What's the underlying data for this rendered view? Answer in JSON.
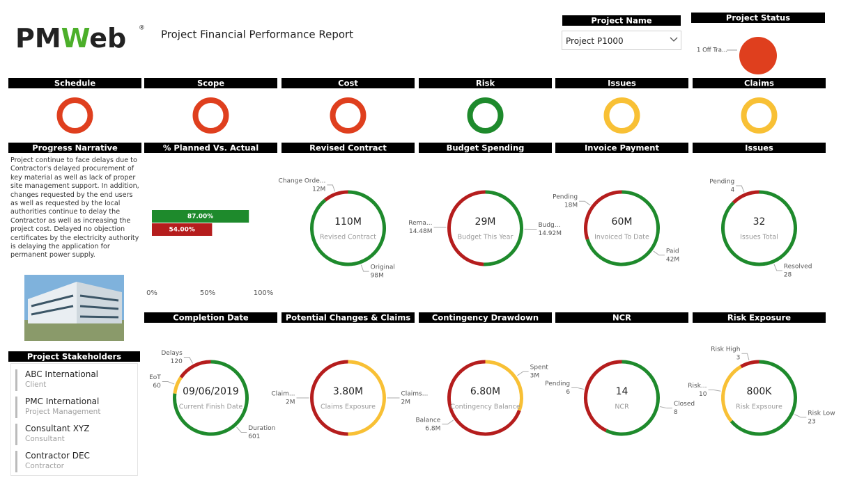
{
  "header": {
    "logo": [
      "PM",
      "W",
      "eb"
    ],
    "logo_mark": "®",
    "title": "Project Financial Performance Report"
  },
  "project_name": {
    "label": "Project Name",
    "value": "Project P1000"
  },
  "project_status": {
    "label": "Project Status",
    "legend": "1 Off Tra...",
    "color": "#df3f1e"
  },
  "indicators": [
    {
      "label": "Schedule",
      "color": "#df3f1e"
    },
    {
      "label": "Scope",
      "color": "#df3f1e"
    },
    {
      "label": "Cost",
      "color": "#df3f1e"
    },
    {
      "label": "Risk",
      "color": "#1e8a2c"
    },
    {
      "label": "Issues",
      "color": "#f8c035"
    },
    {
      "label": "Claims",
      "color": "#f8c035"
    }
  ],
  "narrative": {
    "title": "Progress Narrative",
    "text": "Project continue to face delays due to Contractor's delayed procurement of key material as well as lack of proper site management support. In addition, changes requested by the end users as well as requested by the local authorities continue to delay the Contractor as well as increasing the project cost. Delayed no objection certificates by the electricity authority is delaying the application for permanent power supply."
  },
  "planned_actual": {
    "title": "% Planned Vs. Actual",
    "bars": [
      {
        "value": 87,
        "label": "87.00%",
        "color": "#1e8a2c"
      },
      {
        "value": 54,
        "label": "54.00%",
        "color": "#b51d1d"
      }
    ],
    "xlim": [
      0,
      100
    ],
    "xticks": [
      {
        "value": 0,
        "label": "0%"
      },
      {
        "value": 50,
        "label": "50%"
      },
      {
        "value": 100,
        "label": "100%"
      }
    ]
  },
  "donuts": [
    {
      "title": "Revised Contract",
      "center_value": "110M",
      "center_label": "Revised Contract",
      "segments": [
        {
          "name": "Original",
          "value": 98,
          "label": "98M",
          "color": "#1e8a2c"
        },
        {
          "name": "Change Orde...",
          "value": 12,
          "label": "12M",
          "color": "#b51d1d"
        }
      ]
    },
    {
      "title": "Budget Spending",
      "center_value": "29M",
      "center_label": "Budget This Year",
      "segments": [
        {
          "name": "Budg...",
          "value": 14.92,
          "label": "14.92M",
          "color": "#1e8a2c"
        },
        {
          "name": "Rema...",
          "value": 14.48,
          "label": "14.48M",
          "color": "#b51d1d"
        }
      ]
    },
    {
      "title": "Invoice Payment",
      "center_value": "60M",
      "center_label": "Invoiced To Date",
      "segments": [
        {
          "name": "Paid",
          "value": 42,
          "label": "42M",
          "color": "#1e8a2c"
        },
        {
          "name": "Pending",
          "value": 18,
          "label": "18M",
          "color": "#b51d1d"
        }
      ]
    },
    {
      "title": "Issues",
      "center_value": "32",
      "center_label": "Issues Total",
      "segments": [
        {
          "name": "Resolved",
          "value": 28,
          "label": "28",
          "color": "#1e8a2c"
        },
        {
          "name": "Pending",
          "value": 4,
          "label": "4",
          "color": "#b51d1d"
        }
      ]
    },
    {
      "title": "Completion Date",
      "center_value": "09/06/2019",
      "center_label": "Current Finish Date",
      "segments": [
        {
          "name": "Duration",
          "value": 601,
          "label": "601",
          "color": "#1e8a2c"
        },
        {
          "name": "EoT",
          "value": 60,
          "label": "60",
          "color": "#f8c035"
        },
        {
          "name": "Delays",
          "value": 120,
          "label": "120",
          "color": "#b51d1d"
        }
      ]
    },
    {
      "title": "Potential Changes & Claims",
      "center_value": "3.80M",
      "center_label": "Claims Exposure",
      "segments": [
        {
          "name": "Claims...",
          "value": 2,
          "label": "2M",
          "color": "#f8c035"
        },
        {
          "name": "Claim...",
          "value": 2,
          "label": "2M",
          "color": "#b51d1d"
        }
      ]
    },
    {
      "title": "Contingency Drawdown",
      "center_value": "6.80M",
      "center_label": "Contingency Balance",
      "segments": [
        {
          "name": "Spent",
          "value": 3,
          "label": "3M",
          "color": "#f8c035"
        },
        {
          "name": "Balance",
          "value": 6.8,
          "label": "6.8M",
          "color": "#b51d1d"
        }
      ]
    },
    {
      "title": "NCR",
      "center_value": "14",
      "center_label": "NCR",
      "segments": [
        {
          "name": "Closed",
          "value": 8,
          "label": "8",
          "color": "#1e8a2c"
        },
        {
          "name": "Pending",
          "value": 6,
          "label": "6",
          "color": "#b51d1d"
        }
      ]
    },
    {
      "title": "Risk Exposure",
      "center_value": "800K",
      "center_label": "Risk Expsoure",
      "segments": [
        {
          "name": "Risk Low",
          "value": 23,
          "label": "23",
          "color": "#1e8a2c"
        },
        {
          "name": "Risk...",
          "value": 10,
          "label": "10",
          "color": "#f8c035"
        },
        {
          "name": "Risk High",
          "value": 3,
          "label": "3",
          "color": "#b51d1d"
        }
      ]
    }
  ],
  "stakeholders": {
    "title": "Project Stakeholders",
    "items": [
      {
        "name": "ABC International",
        "role": "Client"
      },
      {
        "name": "PMC International",
        "role": "Project Management"
      },
      {
        "name": "Consultant XYZ",
        "role": "Consultant"
      },
      {
        "name": "Contractor DEC",
        "role": "Contractor"
      }
    ]
  }
}
